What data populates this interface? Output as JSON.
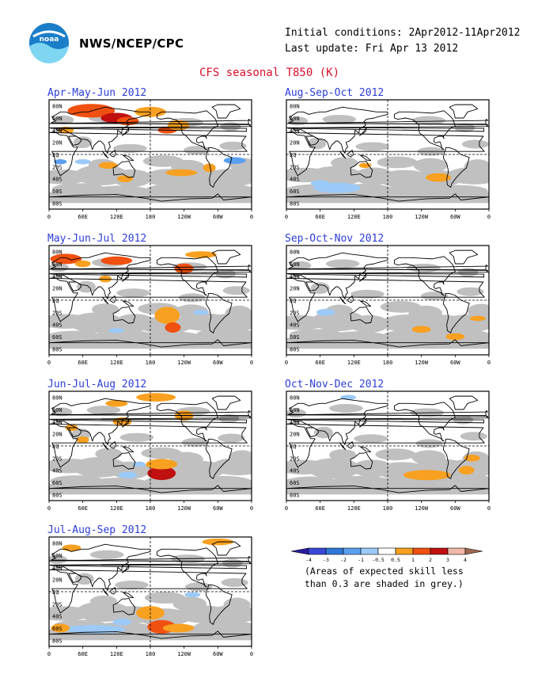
{
  "header": {
    "agency": "NWS/NCEP/CPC",
    "initial_conditions": "Initial conditions: 2Apr2012-11Apr2012",
    "last_update": "Last update: Fri Apr 13 2012",
    "title": "CFS seasonal T850 (K)",
    "logo_text": "noaa"
  },
  "axes": {
    "lat_labels": [
      "80N",
      "60N",
      "40N",
      "20N",
      "EQ",
      "20S",
      "40S",
      "60S",
      "80S"
    ],
    "lon_labels": [
      "0",
      "60E",
      "120E",
      "180",
      "120W",
      "60W",
      "0"
    ]
  },
  "panels": [
    {
      "title": "Apr-May-Jun 2012"
    },
    {
      "title": "May-Jun-Jul 2012"
    },
    {
      "title": "Jun-Jul-Aug 2012"
    },
    {
      "title": "Jul-Aug-Sep 2012"
    },
    {
      "title": "Aug-Sep-Oct 2012"
    },
    {
      "title": "Sep-Oct-Nov 2012"
    },
    {
      "title": "Oct-Nov-Dec 2012"
    }
  ],
  "legend": {
    "ticks": [
      "-4",
      "-3",
      "-2",
      "-1",
      "-0.5",
      "0.5",
      "1",
      "2",
      "3",
      "4"
    ],
    "colors": [
      "#2a1ea0",
      "#3a48d8",
      "#2f78d8",
      "#5aa0f0",
      "#9ccaf8",
      "#ffffff",
      "#f8a020",
      "#f05010",
      "#c01010",
      "#f0b8a8",
      "#a06850"
    ],
    "note_line1": "(Areas of expected skill less",
    "note_line2": "than 0.3 are shaded in grey.)"
  },
  "colors": {
    "title_red": "#d8102a",
    "panel_title_blue": "#2c3ed8",
    "skill_grey": "#c0c0c0"
  }
}
